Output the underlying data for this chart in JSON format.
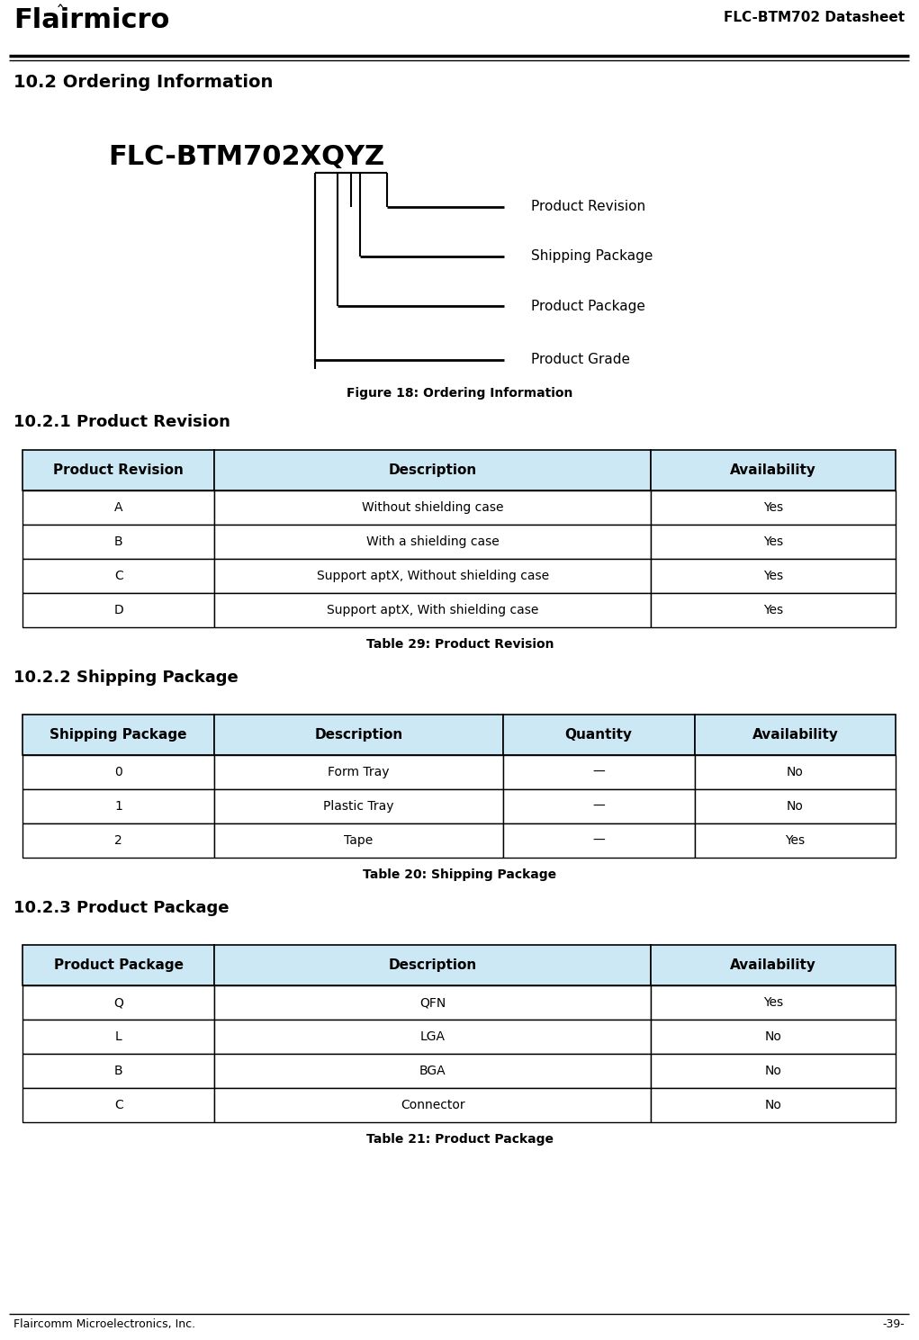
{
  "page_title": "FLC-BTM702 Datasheet",
  "logo_text": "Flairmicro",
  "section_title": "10.2 Ordering Information",
  "model_text": "FLC-BTM702XQYZ",
  "diagram_labels": [
    "Product Revision",
    "Shipping Package",
    "Product Package",
    "Product Grade"
  ],
  "figure_caption": "Figure 18: Ordering Information",
  "section_21": "10.2.1 Product Revision",
  "table1_caption": "Table 29: Product Revision",
  "table1_headers": [
    "Product Revision",
    "Description",
    "Availability"
  ],
  "table1_rows": [
    [
      "A",
      "Without shielding case",
      "Yes"
    ],
    [
      "B",
      "With a shielding case",
      "Yes"
    ],
    [
      "C",
      "Support aptX, Without shielding case",
      "Yes"
    ],
    [
      "D",
      "Support aptX, With shielding case",
      "Yes"
    ]
  ],
  "section_22": "10.2.2 Shipping Package",
  "table2_caption": "Table 20: Shipping Package",
  "table2_headers": [
    "Shipping Package",
    "Description",
    "Quantity",
    "Availability"
  ],
  "table2_rows": [
    [
      "0",
      "Form Tray",
      "—",
      "No"
    ],
    [
      "1",
      "Plastic Tray",
      "—",
      "No"
    ],
    [
      "2",
      "Tape",
      "—",
      "Yes"
    ]
  ],
  "section_23": "10.2.3 Product Package",
  "table3_caption": "Table 21: Product Package",
  "table3_headers": [
    "Product Package",
    "Description",
    "Availability"
  ],
  "table3_rows": [
    [
      "Q",
      "QFN",
      "Yes"
    ],
    [
      "L",
      "LGA",
      "No"
    ],
    [
      "B",
      "BGA",
      "No"
    ],
    [
      "C",
      "Connector",
      "No"
    ]
  ],
  "footer_left": "Flaircomm Microelectronics, Inc.",
  "footer_right": "-39-",
  "header_color": "#cce8f4",
  "border_color": "#000000",
  "bg_color": "#ffffff",
  "text_color": "#000000"
}
